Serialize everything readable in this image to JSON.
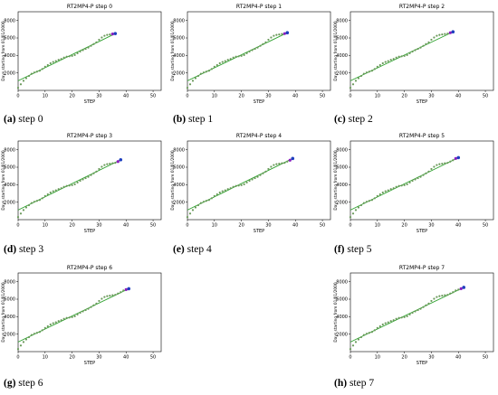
{
  "colors": {
    "trend_line": "#2ca02c",
    "points": "#6b9a5b",
    "start_marker": "#1f3fbf",
    "end_marker": "#8a1fbf",
    "axis": "#000000"
  },
  "panels": [
    {
      "letter": "(a)",
      "caption": "step 0"
    },
    {
      "letter": "(b)",
      "caption": "step 1"
    },
    {
      "letter": "(c)",
      "caption": "step 2"
    },
    {
      "letter": "(d)",
      "caption": "step 3"
    },
    {
      "letter": "(e)",
      "caption": "step 4"
    },
    {
      "letter": "(f)",
      "caption": "step 5"
    },
    {
      "letter": "(g)",
      "caption": "step 6"
    },
    {
      "letter": "(h)",
      "caption": "step 7"
    }
  ],
  "chart_data": [
    {
      "type": "scatter",
      "title": "RT2MP4-P step 0",
      "xlabel": "STEP",
      "ylabel": "Days starting from 01/01/2000",
      "xlim": [
        0,
        53
      ],
      "ylim": [
        0,
        9000
      ],
      "xticks": [
        0,
        10,
        20,
        30,
        40,
        50
      ],
      "yticks": [
        2000,
        4000,
        6000,
        8000
      ],
      "x": [
        0,
        1,
        2,
        3,
        4,
        5,
        6,
        7,
        8,
        9,
        10,
        11,
        12,
        13,
        14,
        15,
        16,
        17,
        18,
        19,
        20,
        21,
        22,
        23,
        24,
        25,
        26,
        27,
        28,
        29,
        30,
        31,
        32,
        33,
        34,
        35,
        36
      ],
      "y": [
        300,
        700,
        1100,
        1400,
        1650,
        1900,
        2050,
        2150,
        2250,
        2450,
        2700,
        2900,
        3100,
        3250,
        3350,
        3500,
        3600,
        3750,
        3850,
        3900,
        3950,
        4050,
        4250,
        4450,
        4600,
        4750,
        4900,
        5100,
        5300,
        5500,
        5800,
        6050,
        6250,
        6350,
        6400,
        6450,
        6500
      ],
      "trend": {
        "x": [
          0,
          36
        ],
        "y": [
          1100,
          6500
        ]
      }
    },
    {
      "type": "scatter",
      "title": "RT2MP4-P step 1",
      "xlabel": "STEP",
      "ylabel": "Days starting from 01/01/2000",
      "xlim": [
        0,
        53
      ],
      "ylim": [
        0,
        9000
      ],
      "xticks": [
        0,
        10,
        20,
        30,
        40,
        50
      ],
      "yticks": [
        2000,
        4000,
        6000,
        8000
      ],
      "x": [
        0,
        1,
        2,
        3,
        4,
        5,
        6,
        7,
        8,
        9,
        10,
        11,
        12,
        13,
        14,
        15,
        16,
        17,
        18,
        19,
        20,
        21,
        22,
        23,
        24,
        25,
        26,
        27,
        28,
        29,
        30,
        31,
        32,
        33,
        34,
        35,
        36,
        37
      ],
      "y": [
        300,
        700,
        1100,
        1400,
        1650,
        1900,
        2050,
        2150,
        2250,
        2450,
        2700,
        2900,
        3100,
        3250,
        3350,
        3500,
        3600,
        3750,
        3850,
        3900,
        3950,
        4050,
        4250,
        4450,
        4600,
        4750,
        4900,
        5100,
        5300,
        5500,
        5800,
        6050,
        6250,
        6350,
        6400,
        6450,
        6500,
        6600
      ],
      "trend": {
        "x": [
          0,
          37
        ],
        "y": [
          1100,
          6600
        ]
      }
    },
    {
      "type": "scatter",
      "title": "RT2MP4-P step 2",
      "xlabel": "STEP",
      "ylabel": "Days starting from 01/01/2000",
      "xlim": [
        0,
        53
      ],
      "ylim": [
        0,
        9000
      ],
      "xticks": [
        0,
        10,
        20,
        30,
        40,
        50
      ],
      "yticks": [
        2000,
        4000,
        6000,
        8000
      ],
      "x": [
        0,
        1,
        2,
        3,
        4,
        5,
        6,
        7,
        8,
        9,
        10,
        11,
        12,
        13,
        14,
        15,
        16,
        17,
        18,
        19,
        20,
        21,
        22,
        23,
        24,
        25,
        26,
        27,
        28,
        29,
        30,
        31,
        32,
        33,
        34,
        35,
        36,
        37,
        38
      ],
      "y": [
        300,
        700,
        1100,
        1400,
        1650,
        1900,
        2050,
        2150,
        2250,
        2450,
        2700,
        2900,
        3100,
        3250,
        3350,
        3500,
        3600,
        3750,
        3850,
        3900,
        3950,
        4050,
        4250,
        4450,
        4600,
        4750,
        4900,
        5100,
        5300,
        5500,
        5800,
        6050,
        6250,
        6350,
        6400,
        6450,
        6500,
        6600,
        6700
      ],
      "trend": {
        "x": [
          0,
          38
        ],
        "y": [
          1100,
          6700
        ]
      }
    },
    {
      "type": "scatter",
      "title": "RT2MP4-P step 3",
      "xlabel": "STEP",
      "ylabel": "Days starting from 01/01/2000",
      "xlim": [
        0,
        53
      ],
      "ylim": [
        0,
        9000
      ],
      "xticks": [
        0,
        10,
        20,
        30,
        40,
        50
      ],
      "yticks": [
        2000,
        4000,
        6000,
        8000
      ],
      "x": [
        0,
        1,
        2,
        3,
        4,
        5,
        6,
        7,
        8,
        9,
        10,
        11,
        12,
        13,
        14,
        15,
        16,
        17,
        18,
        19,
        20,
        21,
        22,
        23,
        24,
        25,
        26,
        27,
        28,
        29,
        30,
        31,
        32,
        33,
        34,
        35,
        36,
        37,
        38
      ],
      "y": [
        300,
        700,
        1100,
        1400,
        1650,
        1900,
        2050,
        2150,
        2250,
        2450,
        2700,
        2900,
        3100,
        3250,
        3350,
        3500,
        3600,
        3750,
        3850,
        3900,
        3950,
        4050,
        4250,
        4450,
        4600,
        4750,
        4900,
        5100,
        5300,
        5500,
        5800,
        6050,
        6250,
        6350,
        6400,
        6450,
        6500,
        6650,
        6850
      ],
      "trend": {
        "x": [
          0,
          38
        ],
        "y": [
          1100,
          6850
        ]
      }
    },
    {
      "type": "scatter",
      "title": "RT2MP4-P step 4",
      "xlabel": "STEP",
      "ylabel": "Days starting from 01/01/2000",
      "xlim": [
        0,
        53
      ],
      "ylim": [
        0,
        9000
      ],
      "xticks": [
        0,
        10,
        20,
        30,
        40,
        50
      ],
      "yticks": [
        2000,
        4000,
        6000,
        8000
      ],
      "x": [
        0,
        1,
        2,
        3,
        4,
        5,
        6,
        7,
        8,
        9,
        10,
        11,
        12,
        13,
        14,
        15,
        16,
        17,
        18,
        19,
        20,
        21,
        22,
        23,
        24,
        25,
        26,
        27,
        28,
        29,
        30,
        31,
        32,
        33,
        34,
        35,
        36,
        37,
        38,
        39
      ],
      "y": [
        300,
        700,
        1100,
        1400,
        1650,
        1900,
        2050,
        2150,
        2250,
        2450,
        2700,
        2900,
        3100,
        3250,
        3350,
        3500,
        3600,
        3750,
        3850,
        3900,
        3950,
        4050,
        4250,
        4450,
        4600,
        4750,
        4900,
        5100,
        5300,
        5500,
        5800,
        6050,
        6250,
        6350,
        6400,
        6450,
        6500,
        6650,
        6800,
        7000
      ],
      "trend": {
        "x": [
          0,
          39
        ],
        "y": [
          1100,
          7000
        ]
      }
    },
    {
      "type": "scatter",
      "title": "RT2MP4-P step 5",
      "xlabel": "STEP",
      "ylabel": "Days starting from 01/01/2000",
      "xlim": [
        0,
        53
      ],
      "ylim": [
        0,
        9000
      ],
      "xticks": [
        0,
        10,
        20,
        30,
        40,
        50
      ],
      "yticks": [
        2000,
        4000,
        6000,
        8000
      ],
      "x": [
        0,
        1,
        2,
        3,
        4,
        5,
        6,
        7,
        8,
        9,
        10,
        11,
        12,
        13,
        14,
        15,
        16,
        17,
        18,
        19,
        20,
        21,
        22,
        23,
        24,
        25,
        26,
        27,
        28,
        29,
        30,
        31,
        32,
        33,
        34,
        35,
        36,
        37,
        38,
        39,
        40
      ],
      "y": [
        300,
        700,
        1100,
        1400,
        1650,
        1900,
        2050,
        2150,
        2250,
        2450,
        2700,
        2900,
        3100,
        3250,
        3350,
        3500,
        3600,
        3750,
        3850,
        3900,
        3950,
        4050,
        4250,
        4450,
        4600,
        4750,
        4900,
        5100,
        5300,
        5500,
        5800,
        6050,
        6250,
        6350,
        6400,
        6450,
        6500,
        6650,
        6800,
        7000,
        7100
      ],
      "trend": {
        "x": [
          0,
          40
        ],
        "y": [
          1100,
          7100
        ]
      }
    },
    {
      "type": "scatter",
      "title": "RT2MP4-P step 6",
      "xlabel": "STEP",
      "ylabel": "Days starting from 01/01/2000",
      "xlim": [
        0,
        53
      ],
      "ylim": [
        0,
        9000
      ],
      "xticks": [
        0,
        10,
        20,
        30,
        40,
        50
      ],
      "yticks": [
        2000,
        4000,
        6000,
        8000
      ],
      "x": [
        0,
        1,
        2,
        3,
        4,
        5,
        6,
        7,
        8,
        9,
        10,
        11,
        12,
        13,
        14,
        15,
        16,
        17,
        18,
        19,
        20,
        21,
        22,
        23,
        24,
        25,
        26,
        27,
        28,
        29,
        30,
        31,
        32,
        33,
        34,
        35,
        36,
        37,
        38,
        39,
        40,
        41
      ],
      "y": [
        300,
        700,
        1100,
        1400,
        1650,
        1900,
        2050,
        2150,
        2250,
        2450,
        2700,
        2900,
        3100,
        3250,
        3350,
        3500,
        3600,
        3750,
        3850,
        3900,
        3950,
        4050,
        4250,
        4450,
        4600,
        4750,
        4900,
        5100,
        5300,
        5500,
        5800,
        6050,
        6250,
        6350,
        6400,
        6450,
        6500,
        6650,
        6800,
        7000,
        7100,
        7200
      ],
      "trend": {
        "x": [
          0,
          41
        ],
        "y": [
          1100,
          7200
        ]
      }
    },
    {
      "type": "scatter",
      "title": "RT2MP4-P step 7",
      "xlabel": "STEP",
      "ylabel": "Days starting from 01/01/2000",
      "xlim": [
        0,
        53
      ],
      "ylim": [
        0,
        9000
      ],
      "xticks": [
        0,
        10,
        20,
        30,
        40,
        50
      ],
      "yticks": [
        2000,
        4000,
        6000,
        8000
      ],
      "x": [
        0,
        1,
        2,
        3,
        4,
        5,
        6,
        7,
        8,
        9,
        10,
        11,
        12,
        13,
        14,
        15,
        16,
        17,
        18,
        19,
        20,
        21,
        22,
        23,
        24,
        25,
        26,
        27,
        28,
        29,
        30,
        31,
        32,
        33,
        34,
        35,
        36,
        37,
        38,
        39,
        40,
        41,
        42
      ],
      "y": [
        300,
        700,
        1100,
        1400,
        1650,
        1900,
        2050,
        2150,
        2250,
        2450,
        2700,
        2900,
        3100,
        3250,
        3350,
        3500,
        3600,
        3750,
        3850,
        3900,
        3950,
        4050,
        4250,
        4450,
        4600,
        4750,
        4900,
        5100,
        5300,
        5500,
        5800,
        6050,
        6250,
        6350,
        6400,
        6450,
        6500,
        6650,
        6800,
        7000,
        7100,
        7200,
        7350
      ],
      "trend": {
        "x": [
          0,
          42
        ],
        "y": [
          1100,
          7350
        ]
      }
    }
  ]
}
